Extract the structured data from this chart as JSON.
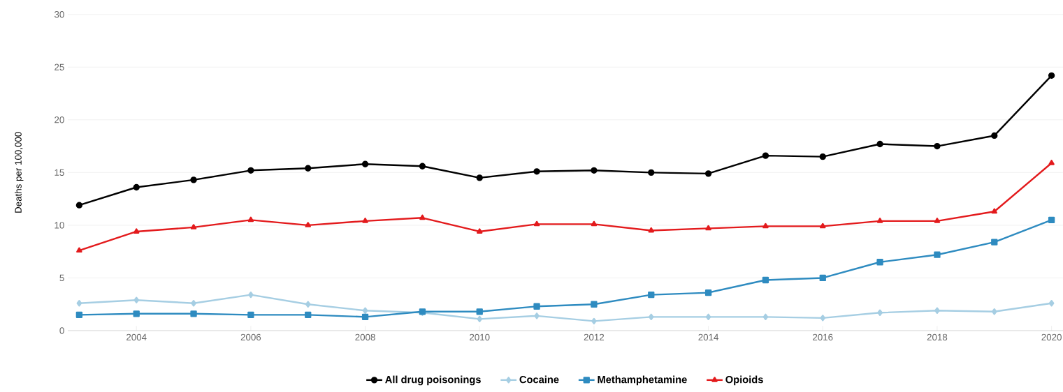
{
  "chart_data": {
    "type": "line",
    "ylabel": "Deaths per 100,000",
    "x": [
      2003,
      2004,
      2005,
      2006,
      2007,
      2008,
      2009,
      2010,
      2011,
      2012,
      2013,
      2014,
      2015,
      2016,
      2017,
      2018,
      2019,
      2020
    ],
    "xlim": [
      2002.8,
      2020.2
    ],
    "xticks": [
      2004,
      2006,
      2008,
      2010,
      2012,
      2014,
      2016,
      2018,
      2020
    ],
    "ylim": [
      0,
      30
    ],
    "yticks": [
      0,
      5,
      10,
      15,
      20,
      25,
      30
    ],
    "grid": "y",
    "legend": "bottom",
    "series": [
      {
        "name": "All drug poisonings",
        "color": "#000000",
        "marker": "circle",
        "values": [
          11.9,
          13.6,
          14.3,
          15.2,
          15.4,
          15.8,
          15.6,
          14.5,
          15.1,
          15.2,
          15.0,
          14.9,
          16.6,
          16.5,
          17.7,
          17.5,
          18.5,
          24.2
        ]
      },
      {
        "name": "Cocaine",
        "color": "#a6cee3",
        "marker": "diamond",
        "values": [
          2.6,
          2.9,
          2.6,
          3.4,
          2.5,
          1.9,
          1.7,
          1.1,
          1.4,
          0.9,
          1.3,
          1.3,
          1.3,
          1.2,
          1.7,
          1.9,
          1.8,
          2.6
        ]
      },
      {
        "name": "Methamphetamine",
        "color": "#2e8bc0",
        "marker": "square",
        "values": [
          1.5,
          1.6,
          1.6,
          1.5,
          1.5,
          1.3,
          1.8,
          1.8,
          2.3,
          2.5,
          3.4,
          3.6,
          4.8,
          5.0,
          6.5,
          7.2,
          8.4,
          10.5
        ]
      },
      {
        "name": "Opioids",
        "color": "#e31a1c",
        "marker": "triangle",
        "values": [
          7.6,
          9.4,
          9.8,
          10.5,
          10.0,
          10.4,
          10.7,
          9.4,
          10.1,
          10.1,
          9.5,
          9.7,
          9.9,
          9.9,
          10.4,
          10.4,
          11.3,
          15.9
        ]
      }
    ]
  }
}
